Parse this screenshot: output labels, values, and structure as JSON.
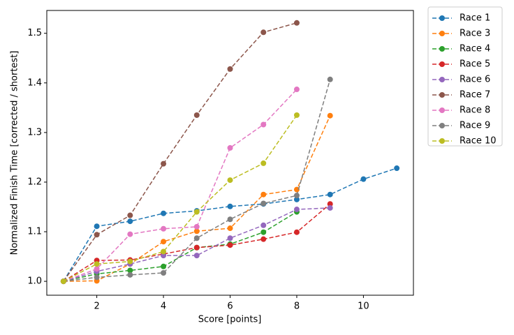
{
  "chart_data": {
    "type": "line",
    "x_label": "Score [points]",
    "y_label": "Normalized Finish Time [corrected / shortest]",
    "xlim": [
      0.5,
      11.5
    ],
    "xticks": [
      2,
      4,
      6,
      8,
      10
    ],
    "ylim": [
      0.972,
      1.546
    ],
    "yticks": [
      {
        "value": 1.0,
        "label": "1.0"
      },
      1.1,
      1.2,
      1.3,
      1.4,
      1.5
    ],
    "legend": "outside-right",
    "line_style": "dashed",
    "marker": "circle",
    "series": [
      {
        "name": "Race 1",
        "color": "#1f77b4",
        "x": [
          1,
          2,
          3,
          4,
          5,
          6,
          7,
          8,
          9,
          10,
          11
        ],
        "values": [
          1.0,
          1.111,
          1.121,
          1.137,
          1.142,
          1.151,
          1.156,
          1.165,
          1.175,
          1.206,
          1.228
        ]
      },
      {
        "name": "Race 3",
        "color": "#ff7f0e",
        "x": [
          1,
          2,
          3,
          4,
          5,
          6,
          7,
          8,
          9
        ],
        "values": [
          1.0,
          1.001,
          1.035,
          1.08,
          1.101,
          1.107,
          1.175,
          1.185,
          1.334
        ]
      },
      {
        "name": "Race 4",
        "color": "#2ca02c",
        "x": [
          1,
          2,
          3,
          4,
          5,
          6,
          7,
          8
        ],
        "values": [
          1.0,
          1.015,
          1.022,
          1.03,
          1.068,
          1.075,
          1.099,
          1.14
        ]
      },
      {
        "name": "Race 5",
        "color": "#d62728",
        "x": [
          1,
          2,
          3,
          4,
          5,
          6,
          7,
          8,
          9
        ],
        "values": [
          1.0,
          1.042,
          1.043,
          1.055,
          1.068,
          1.073,
          1.085,
          1.099,
          1.156
        ]
      },
      {
        "name": "Race 6",
        "color": "#9467bd",
        "x": [
          1,
          2,
          3,
          4,
          5,
          6,
          7,
          8,
          9
        ],
        "values": [
          1.0,
          1.02,
          1.035,
          1.052,
          1.052,
          1.087,
          1.113,
          1.145,
          1.148
        ]
      },
      {
        "name": "Race 7",
        "color": "#8c564b",
        "x": [
          1,
          2,
          3,
          4,
          5,
          6,
          7,
          8
        ],
        "values": [
          1.0,
          1.094,
          1.133,
          1.237,
          1.335,
          1.428,
          1.502,
          1.521
        ]
      },
      {
        "name": "Race 8",
        "color": "#e377c2",
        "x": [
          1,
          2,
          3,
          4,
          5,
          6,
          7,
          8
        ],
        "values": [
          1.0,
          1.025,
          1.095,
          1.106,
          1.11,
          1.269,
          1.316,
          1.387
        ]
      },
      {
        "name": "Race 9",
        "color": "#7f7f7f",
        "x": [
          1,
          2,
          3,
          4,
          5,
          6,
          7,
          8,
          9
        ],
        "values": [
          1.0,
          1.008,
          1.013,
          1.017,
          1.087,
          1.125,
          1.157,
          1.173,
          1.407
        ]
      },
      {
        "name": "Race 10",
        "color": "#bcbd22",
        "x": [
          1,
          2,
          3,
          4,
          5,
          6,
          7,
          8
        ],
        "values": [
          1.0,
          1.035,
          1.04,
          1.06,
          1.14,
          1.204,
          1.238,
          1.335
        ]
      }
    ]
  }
}
